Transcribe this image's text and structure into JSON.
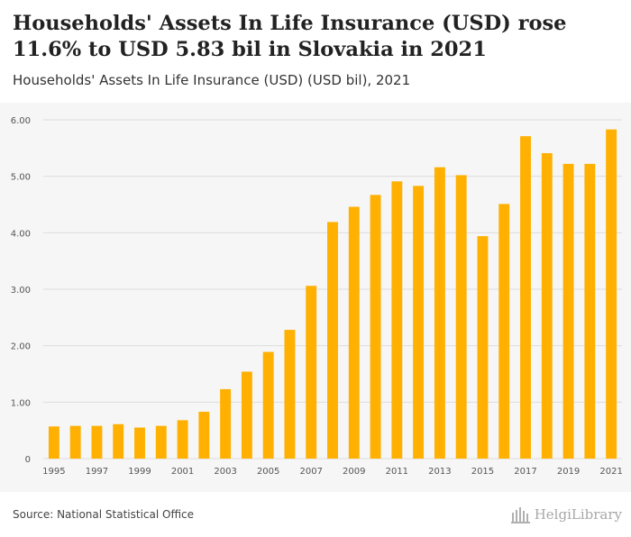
{
  "header": {
    "title": "Households' Assets In Life Insurance (USD) rose 11.6% to USD 5.83 bil in Slovakia in 2021",
    "subtitle": "Households' Assets In Life Insurance (USD) (USD bil), 2021"
  },
  "footer": {
    "source": "Source: National Statistical Office",
    "brand": "HelgiLibrary"
  },
  "colors": {
    "bar": "#ffb000",
    "grid": "#dcdcdc",
    "plot_bg": "#f6f6f6",
    "tick_text": "#555555"
  },
  "chart_data": {
    "type": "bar",
    "title": "Households' Assets In Life Insurance (USD) (USD bil), 2021",
    "xlabel": "",
    "ylabel": "",
    "ylim": [
      0,
      6
    ],
    "yticks": [
      0,
      1,
      2,
      3,
      4,
      5,
      6
    ],
    "ytick_labels": [
      "0",
      "1.00",
      "2.00",
      "3.00",
      "4.00",
      "5.00",
      "6.00"
    ],
    "grid": true,
    "categories": [
      "1995",
      "1996",
      "1997",
      "1998",
      "1999",
      "2000",
      "2001",
      "2002",
      "2003",
      "2004",
      "2005",
      "2006",
      "2007",
      "2008",
      "2009",
      "2010",
      "2011",
      "2012",
      "2013",
      "2014",
      "2015",
      "2016",
      "2017",
      "2018",
      "2019",
      "2020",
      "2021"
    ],
    "xtick_labels": [
      "1995",
      "",
      "1997",
      "",
      "1999",
      "",
      "2001",
      "",
      "2003",
      "",
      "2005",
      "",
      "2007",
      "",
      "2009",
      "",
      "2011",
      "",
      "2013",
      "",
      "2015",
      "",
      "2017",
      "",
      "2019",
      "",
      "2021"
    ],
    "values": [
      0.57,
      0.58,
      0.58,
      0.61,
      0.55,
      0.58,
      0.68,
      0.83,
      1.23,
      1.54,
      1.89,
      2.28,
      3.06,
      4.19,
      4.46,
      4.67,
      4.91,
      4.83,
      5.16,
      5.02,
      3.94,
      4.51,
      5.71,
      5.41,
      5.22,
      5.22,
      5.83
    ]
  }
}
